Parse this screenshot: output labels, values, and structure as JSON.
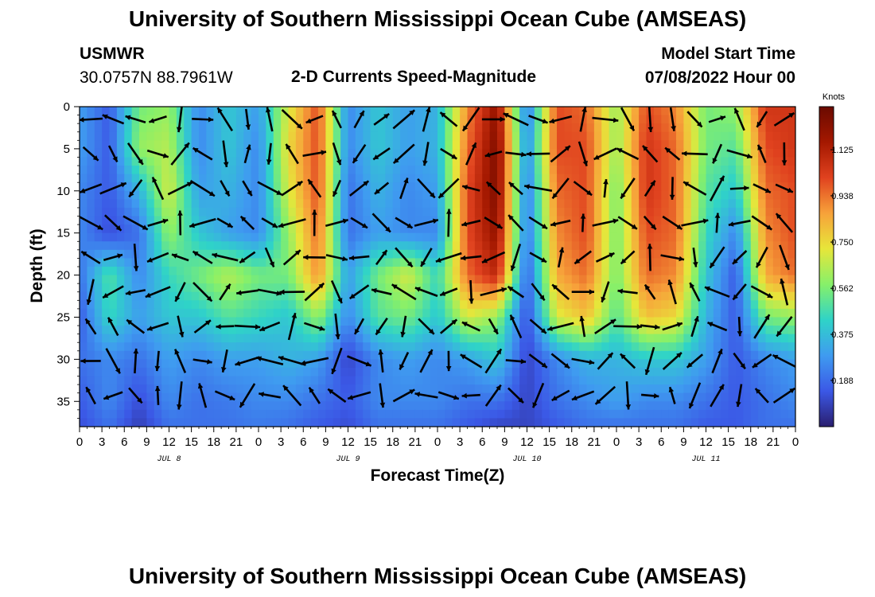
{
  "header": {
    "title": "University of Southern Mississippi Ocean Cube (AMSEAS)",
    "station": "USMWR",
    "location": "30.0757N  88.7961W",
    "subtitle": "2-D Currents Speed-Magnitude",
    "model_start_label": "Model Start Time",
    "model_start_value": "07/08/2022 Hour 00"
  },
  "footer": {
    "title": "University of Southern Mississippi Ocean Cube (AMSEAS)"
  },
  "colors": {
    "colormap": [
      "#2a1e6e",
      "#3b58e6",
      "#3f9bf0",
      "#2fd3c8",
      "#86f06a",
      "#e7e63a",
      "#f7a23a",
      "#e0421f",
      "#a41800",
      "#6a0a00"
    ]
  },
  "chart_data": {
    "type": "heatmap",
    "title": "2-D Currents Speed-Magnitude",
    "xlabel": "Forecast Time(Z)",
    "ylabel": "Depth (ft)",
    "x_ticks": [
      "0",
      "3",
      "6",
      "9",
      "12",
      "15",
      "18",
      "21",
      "0",
      "3",
      "6",
      "9",
      "12",
      "15",
      "18",
      "21",
      "0",
      "3",
      "6",
      "9",
      "12",
      "15",
      "18",
      "21",
      "0",
      "3",
      "6",
      "9",
      "12",
      "15",
      "18",
      "21",
      "0"
    ],
    "x_hours_range": [
      0,
      96
    ],
    "day_labels": [
      {
        "label": "JUL 8",
        "hour": 12
      },
      {
        "label": "JUL 9",
        "hour": 36
      },
      {
        "label": "JUL 10",
        "hour": 60
      },
      {
        "label": "JUL 11",
        "hour": 84
      }
    ],
    "y_ticks": [
      "0",
      "5",
      "10",
      "15",
      "20",
      "25",
      "30",
      "35"
    ],
    "ylim": [
      0,
      38
    ],
    "colorbar": {
      "title": "Knots",
      "ticks": [
        "0.188",
        "0.375",
        "0.562",
        "0.750",
        "0.938",
        "1.125"
      ],
      "range": [
        0,
        1.3
      ]
    },
    "grid": {
      "hours": [
        0,
        4,
        8,
        12,
        16,
        20,
        24,
        28,
        32,
        36,
        40,
        44,
        48,
        52,
        56,
        60,
        64,
        68,
        72,
        76,
        80,
        84,
        88,
        92,
        96
      ],
      "depths": [
        0,
        5,
        10,
        15,
        20,
        25,
        30,
        35,
        38
      ],
      "speed_knots": [
        [
          0.3,
          0.15,
          0.55,
          0.6,
          0.25,
          0.4,
          0.3,
          0.7,
          1.0,
          0.25,
          0.4,
          0.3,
          0.35,
          0.9,
          1.2,
          0.2,
          1.0,
          0.95,
          0.6,
          1.0,
          0.9,
          0.55,
          0.6,
          1.05,
          1.05
        ],
        [
          0.3,
          0.15,
          0.6,
          0.65,
          0.25,
          0.4,
          0.25,
          0.75,
          1.0,
          0.25,
          0.4,
          0.3,
          0.35,
          0.95,
          1.25,
          0.25,
          1.0,
          1.0,
          0.6,
          1.05,
          0.95,
          0.55,
          0.5,
          1.0,
          1.05
        ],
        [
          0.25,
          0.15,
          0.35,
          0.7,
          0.3,
          0.35,
          0.25,
          0.7,
          1.0,
          0.2,
          0.35,
          0.25,
          0.3,
          1.0,
          1.25,
          0.2,
          0.95,
          1.0,
          0.55,
          1.05,
          0.95,
          0.5,
          0.4,
          0.95,
          1.0
        ],
        [
          0.25,
          0.12,
          0.2,
          0.6,
          0.4,
          0.3,
          0.25,
          0.6,
          0.95,
          0.2,
          0.3,
          0.25,
          0.25,
          1.0,
          1.2,
          0.2,
          0.9,
          1.0,
          0.55,
          1.0,
          0.95,
          0.45,
          0.25,
          0.9,
          1.0
        ],
        [
          0.2,
          0.5,
          0.25,
          0.45,
          0.55,
          0.65,
          0.55,
          0.55,
          0.9,
          0.3,
          0.55,
          0.7,
          0.45,
          0.95,
          1.1,
          0.15,
          0.85,
          0.95,
          0.55,
          0.95,
          0.9,
          0.4,
          0.15,
          0.85,
          0.95
        ],
        [
          0.15,
          0.45,
          0.3,
          0.4,
          0.4,
          0.5,
          0.45,
          0.4,
          0.6,
          0.25,
          0.5,
          0.55,
          0.4,
          0.7,
          0.6,
          0.12,
          0.7,
          0.8,
          0.5,
          0.8,
          0.75,
          0.35,
          0.15,
          0.55,
          0.6
        ],
        [
          0.2,
          0.25,
          0.2,
          0.3,
          0.25,
          0.3,
          0.3,
          0.35,
          0.3,
          0.1,
          0.25,
          0.3,
          0.25,
          0.3,
          0.4,
          0.1,
          0.25,
          0.35,
          0.35,
          0.4,
          0.4,
          0.3,
          0.15,
          0.25,
          0.3
        ],
        [
          0.15,
          0.25,
          0.12,
          0.25,
          0.2,
          0.22,
          0.25,
          0.25,
          0.2,
          0.15,
          0.25,
          0.25,
          0.25,
          0.2,
          0.2,
          0.1,
          0.2,
          0.25,
          0.3,
          0.25,
          0.25,
          0.2,
          0.15,
          0.2,
          0.25
        ],
        [
          0.12,
          0.2,
          0.08,
          0.2,
          0.2,
          0.2,
          0.22,
          0.2,
          0.15,
          0.12,
          0.2,
          0.2,
          0.2,
          0.15,
          0.1,
          0.1,
          0.15,
          0.2,
          0.2,
          0.2,
          0.2,
          0.15,
          0.15,
          0.2,
          0.2
        ]
      ]
    }
  }
}
